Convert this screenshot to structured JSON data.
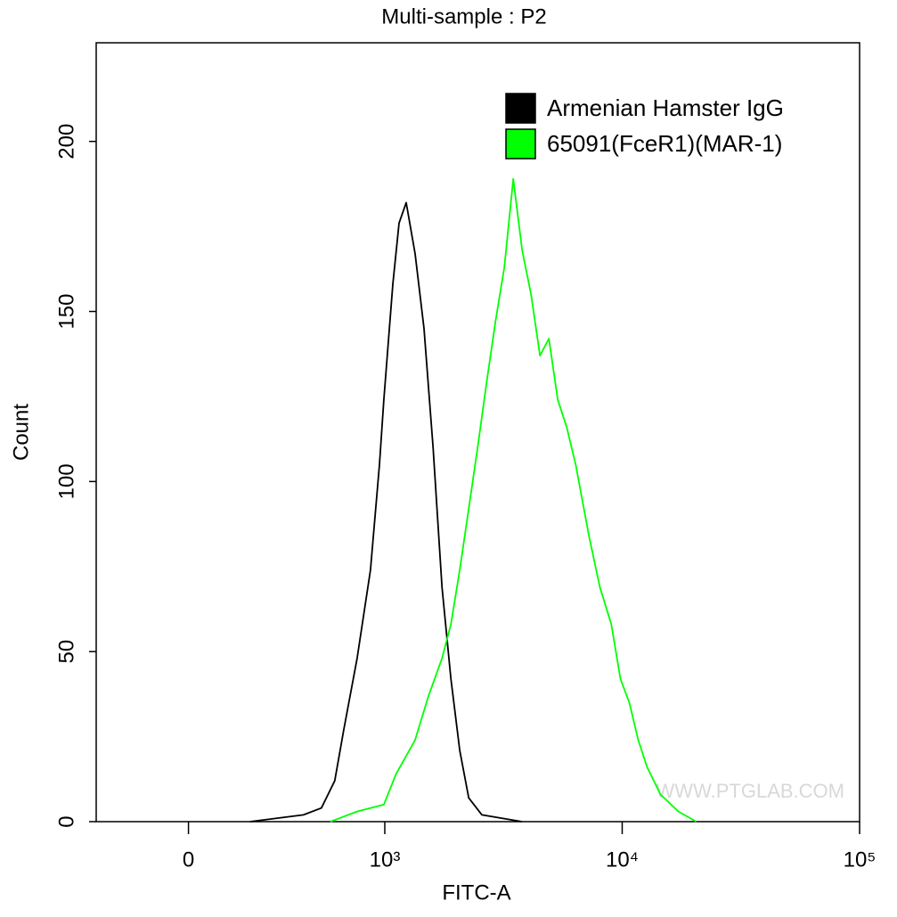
{
  "chart_data": {
    "type": "line",
    "title": "Multi-sample : P2",
    "xlabel": "FITC-A",
    "ylabel": "Count",
    "xscale": "biexponential",
    "xlim": [
      -470,
      100000
    ],
    "ylim": [
      0,
      229
    ],
    "xticks": [
      0,
      {
        "value": 1000,
        "label": "10³"
      },
      {
        "value": 10000,
        "label": "10⁴"
      },
      {
        "value": 100000,
        "label": "10⁵"
      }
    ],
    "yticks": [
      0,
      50,
      100,
      150,
      200
    ],
    "legend": "upper right",
    "watermark": "WWW.PTGLAB.COM",
    "series": [
      {
        "name": "Armenian Hamster IgG",
        "color": "#000000",
        "x": [
          314,
          586,
          677,
          745,
          791,
          859,
          927,
          973,
          995,
          1081,
          1148,
          1231,
          1342,
          1463,
          1597,
          1741,
          1898,
          2069,
          2256,
          2564,
          3785
        ],
        "values": [
          0,
          2,
          4,
          12,
          27,
          48,
          74,
          105,
          124,
          158,
          176,
          182,
          167,
          145,
          110,
          69,
          42,
          21,
          7,
          2,
          0
        ]
      },
      {
        "name": "65091(FceR1)(MAR-1)",
        "color": "#00ff00",
        "x": [
          723,
          859,
          995,
          1115,
          1342,
          1528,
          1741,
          1898,
          2069,
          2256,
          2460,
          2682,
          2924,
          3188,
          3476,
          3790,
          4133,
          4506,
          4913,
          5356,
          5840,
          6368,
          7247,
          8048,
          9001,
          9826,
          10713,
          11680,
          12734,
          14506,
          17256,
          20530
        ],
        "values": [
          0,
          3,
          5,
          14,
          24,
          37,
          48,
          58,
          74,
          92,
          110,
          129,
          147,
          163,
          189,
          168,
          155,
          137,
          142,
          124,
          116,
          105,
          84,
          69,
          58,
          42,
          35,
          24,
          16,
          8,
          3,
          0
        ]
      }
    ]
  }
}
